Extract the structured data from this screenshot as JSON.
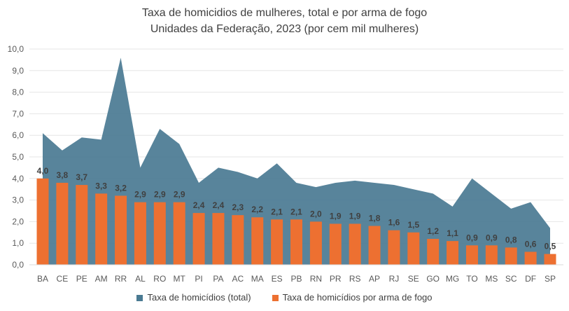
{
  "chart_data": {
    "type": "bar+area",
    "title": "Taxa de homicidios de mulheres, total e por arma de fogo",
    "subtitle": "Unidades da Federação, 2023 (por cem mil mulheres)",
    "xlabel": "",
    "ylabel": "",
    "ylim": [
      0,
      10
    ],
    "yticks": [
      "0,0",
      "1,0",
      "2,0",
      "3,0",
      "4,0",
      "5,0",
      "6,0",
      "7,0",
      "8,0",
      "9,0",
      "10,0"
    ],
    "grid": true,
    "legend_position": "bottom",
    "categories": [
      "BA",
      "CE",
      "PE",
      "AM",
      "RR",
      "AL",
      "RO",
      "MT",
      "PI",
      "PA",
      "AC",
      "MA",
      "ES",
      "PB",
      "RN",
      "PR",
      "RS",
      "AP",
      "RJ",
      "SE",
      "GO",
      "MG",
      "TO",
      "MS",
      "SC",
      "DF",
      "SP"
    ],
    "series": [
      {
        "name": "Taxa de homicídios (total)",
        "type": "area",
        "color": "#4a7a92",
        "values": [
          6.1,
          5.3,
          5.9,
          5.8,
          9.6,
          4.5,
          6.3,
          5.6,
          3.8,
          4.5,
          4.3,
          4.0,
          4.7,
          3.8,
          3.6,
          3.8,
          3.9,
          3.8,
          3.7,
          3.5,
          3.3,
          2.7,
          4.0,
          3.3,
          2.6,
          2.9,
          1.7
        ]
      },
      {
        "name": "Taxa de homicídios por arma de fogo",
        "type": "bar",
        "color": "#ed7031",
        "values": [
          4.0,
          3.8,
          3.7,
          3.3,
          3.2,
          2.9,
          2.9,
          2.9,
          2.4,
          2.4,
          2.3,
          2.2,
          2.1,
          2.1,
          2.0,
          1.9,
          1.9,
          1.8,
          1.6,
          1.5,
          1.2,
          1.1,
          0.9,
          0.9,
          0.8,
          0.6,
          0.5
        ],
        "labels": [
          "4,0",
          "3,8",
          "3,7",
          "3,3",
          "3,2",
          "2,9",
          "2,9",
          "2,9",
          "2,4",
          "2,4",
          "2,3",
          "2,2",
          "2,1",
          "2,1",
          "2,0",
          "1,9",
          "1,9",
          "1,8",
          "1,6",
          "1,5",
          "1,2",
          "1,1",
          "0,9",
          "0,9",
          "0,8",
          "0,6",
          "0,5"
        ]
      }
    ]
  }
}
